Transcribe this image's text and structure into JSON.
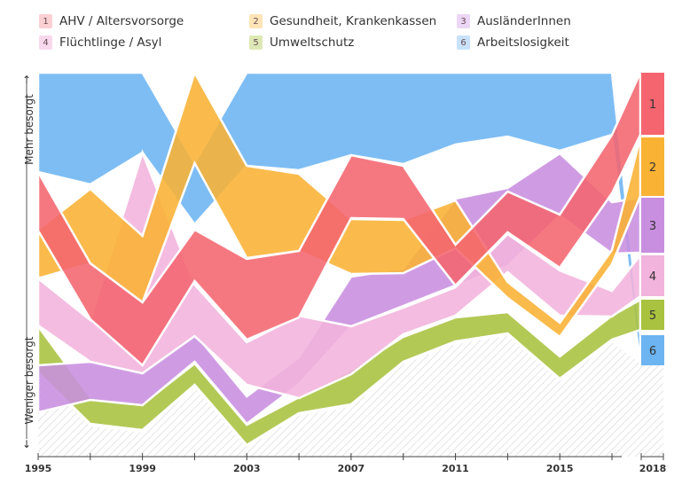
{
  "legend": [
    {
      "num": "1",
      "label": "AHV / Altersvorsorge",
      "color": "#f4656f",
      "light": "#fbd0d3"
    },
    {
      "num": "2",
      "label": "Gesundheit, Krankenkassen",
      "color": "#f9b233",
      "light": "#fde5b8"
    },
    {
      "num": "3",
      "label": "AusländerInnen",
      "color": "#c88ee0",
      "light": "#ecd6f5"
    },
    {
      "num": "4",
      "label": "Flüchtlinge / Asyl",
      "color": "#f2b3dc",
      "light": "#f8d8ec"
    },
    {
      "num": "5",
      "label": "Umweltschutz",
      "color": "#a9c23f",
      "light": "#dde8b5"
    },
    {
      "num": "6",
      "label": "Arbeitslosigkeit",
      "color": "#6cb4f2",
      "light": "#c8e2fa"
    }
  ],
  "axis": {
    "y_top_label": "Mehr besorgt",
    "y_bottom_label": "Weniger besorgt",
    "up_arrow": "↑",
    "down_arrow": "↓"
  },
  "chart_data": {
    "type": "area",
    "title": "",
    "x": [
      1995,
      1997,
      1999,
      2001,
      2003,
      2005,
      2007,
      2009,
      2011,
      2013,
      2015,
      2017
    ],
    "x_tick_labels": [
      "1995",
      "1999",
      "2003",
      "2007",
      "2011",
      "2015",
      "2018"
    ],
    "x_tick_values": [
      1995,
      1999,
      2003,
      2007,
      2011,
      2015,
      2018
    ],
    "last_year": 2018,
    "ylabel_top": "Mehr besorgt",
    "ylabel_bottom": "Weniger besorgt",
    "series_order_top_to_bottom_2018": [
      "1",
      "2",
      "3",
      "4",
      "5",
      "6"
    ],
    "series": [
      {
        "name": "AHV / Altersvorsorge",
        "num": "1",
        "top": [
          194,
          297,
          341,
          259,
          292,
          283,
          175,
          187,
          276,
          216,
          242,
          152
        ],
        "bottom": [
          260,
          360,
          412,
          317,
          383,
          358,
          246,
          247,
          322,
          262,
          302,
          218
        ]
      },
      {
        "name": "Gesundheit, Krankenkassen",
        "num": "2",
        "top": [
          259,
          213,
          266,
          82,
          187,
          196,
          247,
          248,
          226,
          318,
          364,
          282
        ],
        "bottom": [
          314,
          297,
          341,
          184,
          291,
          283,
          309,
          308,
          280,
          336,
          380,
          298
        ]
      },
      {
        "name": "AusländerInnen",
        "num": "3",
        "top": [
          412,
          408,
          420,
          376,
          447,
          403,
          312,
          303,
          224,
          212,
          173,
          228
        ],
        "bottom": [
          465,
          451,
          457,
          408,
          478,
          433,
          368,
          345,
          322,
          300,
          243,
          286
        ]
      },
      {
        "name": "Flüchtlinge / Asyl",
        "num": "4",
        "top": [
          314,
          361,
          172,
          321,
          386,
          356,
          368,
          347,
          324,
          264,
          305,
          328
        ],
        "bottom": [
          367,
          408,
          421,
          379,
          434,
          449,
          422,
          377,
          356,
          307,
          356,
          357
        ]
      },
      {
        "name": "Umweltschutz",
        "num": "5",
        "top": [
          368,
          448,
          456,
          410,
          479,
          448,
          417,
          380,
          358,
          352,
          402,
          356
        ],
        "bottom": [
          420,
          478,
          485,
          434,
          502,
          466,
          456,
          408,
          385,
          376,
          427,
          383
        ]
      },
      {
        "name": "Arbeitslosigkeit",
        "num": "6",
        "top": [
          82,
          82,
          82,
          184,
          82,
          82,
          82,
          82,
          82,
          82,
          82,
          82
        ],
        "bottom": [
          194,
          208,
          172,
          253,
          187,
          192,
          175,
          185,
          163,
          154,
          170,
          152
        ]
      }
    ],
    "badges_2018": [
      {
        "num": "1",
        "color": "#f4656f"
      },
      {
        "num": "2",
        "color": "#f9b233"
      },
      {
        "num": "3",
        "color": "#c88ee0"
      },
      {
        "num": "4",
        "color": "#f2b3dc"
      },
      {
        "num": "5",
        "color": "#a9c23f"
      },
      {
        "num": "6",
        "color": "#6cb4f2"
      }
    ],
    "grid": false,
    "legend_position": "top"
  }
}
